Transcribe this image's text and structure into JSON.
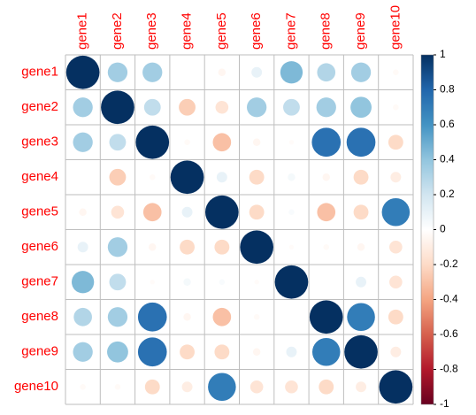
{
  "chart_data": {
    "type": "corrplot",
    "labels": [
      "gene1",
      "gene2",
      "gene3",
      "gene4",
      "gene5",
      "gene6",
      "gene7",
      "gene8",
      "gene9",
      "gene10"
    ],
    "matrix": [
      [
        1,
        0.35,
        0.35,
        0,
        -0.05,
        0.1,
        0.45,
        0.3,
        0.35,
        -0.03
      ],
      [
        0.35,
        1,
        0.25,
        -0.25,
        -0.15,
        0.35,
        0.25,
        0.35,
        0.4,
        -0.03
      ],
      [
        0.35,
        0.25,
        1,
        -0.03,
        -0.3,
        -0.05,
        -0.02,
        0.75,
        0.75,
        -0.2
      ],
      [
        0,
        -0.25,
        -0.03,
        1,
        0.1,
        -0.2,
        0.05,
        -0.05,
        -0.2,
        -0.1
      ],
      [
        -0.05,
        -0.15,
        -0.3,
        0.1,
        1,
        -0.2,
        0.03,
        -0.3,
        -0.2,
        0.7
      ],
      [
        0.1,
        0.35,
        -0.05,
        -0.2,
        -0.2,
        1,
        -0.02,
        -0.03,
        -0.05,
        -0.15
      ],
      [
        0.45,
        0.25,
        -0.02,
        0.05,
        0.03,
        -0.02,
        1,
        0,
        0.1,
        -0.15
      ],
      [
        0.3,
        0.35,
        0.75,
        -0.05,
        -0.3,
        -0.03,
        0,
        1,
        0.7,
        -0.2
      ],
      [
        0.35,
        0.4,
        0.75,
        -0.2,
        -0.2,
        -0.05,
        0.1,
        0.7,
        1,
        -0.1
      ],
      [
        -0.03,
        -0.03,
        -0.2,
        -0.1,
        0.7,
        -0.15,
        -0.15,
        -0.2,
        -0.1,
        1
      ]
    ],
    "clim": [
      -1,
      1
    ],
    "colorscale": [
      "#67001F",
      "#B2182B",
      "#D6604D",
      "#F4A582",
      "#FDDBC7",
      "#FFFFFF",
      "#D1E5F0",
      "#92C5DE",
      "#4393C3",
      "#2166AC",
      "#053061"
    ],
    "colorbar_ticks": [
      -1,
      -0.8,
      -0.6,
      -0.4,
      -0.2,
      0,
      0.2,
      0.4,
      0.6,
      0.8,
      1
    ],
    "grid_color": "#bebebe",
    "label_color": "#ff0000"
  }
}
